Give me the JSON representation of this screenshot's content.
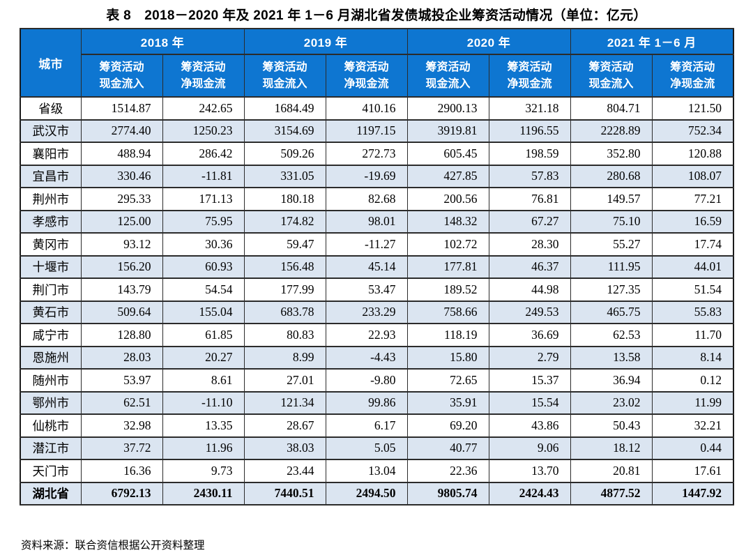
{
  "title": "表 8　2018－2020 年及 2021 年 1－6 月湖北省发债城投企业筹资活动情况（单位：亿元）",
  "source": "资料来源：联合资信根据公开资料整理",
  "colors": {
    "header_bg": "#0e76d1",
    "header_text": "#ffffff",
    "stripe_bg": "#dbe5f1",
    "border": "#2b2b2b"
  },
  "table": {
    "city_header": "城市",
    "year_groups": [
      "2018 年",
      "2019 年",
      "2020 年",
      "2021 年 1－6 月"
    ],
    "subheaders": [
      [
        "筹资活动",
        "现金流入"
      ],
      [
        "筹资活动",
        "净现金流"
      ]
    ],
    "rows": [
      {
        "city": "省级",
        "values": [
          "1514.87",
          "242.65",
          "1684.49",
          "410.16",
          "2900.13",
          "321.18",
          "804.71",
          "121.50"
        ]
      },
      {
        "city": "武汉市",
        "values": [
          "2774.40",
          "1250.23",
          "3154.69",
          "1197.15",
          "3919.81",
          "1196.55",
          "2228.89",
          "752.34"
        ]
      },
      {
        "city": "襄阳市",
        "values": [
          "488.94",
          "286.42",
          "509.26",
          "272.73",
          "605.45",
          "198.59",
          "352.80",
          "120.88"
        ]
      },
      {
        "city": "宜昌市",
        "values": [
          "330.46",
          "-11.81",
          "331.05",
          "-19.69",
          "427.85",
          "57.83",
          "280.68",
          "108.07"
        ]
      },
      {
        "city": "荆州市",
        "values": [
          "295.33",
          "171.13",
          "180.18",
          "82.68",
          "200.56",
          "76.81",
          "149.57",
          "77.21"
        ]
      },
      {
        "city": "孝感市",
        "values": [
          "125.00",
          "75.95",
          "174.82",
          "98.01",
          "148.32",
          "67.27",
          "75.10",
          "16.59"
        ]
      },
      {
        "city": "黄冈市",
        "values": [
          "93.12",
          "30.36",
          "59.47",
          "-11.27",
          "102.72",
          "28.30",
          "55.27",
          "17.74"
        ]
      },
      {
        "city": "十堰市",
        "values": [
          "156.20",
          "60.93",
          "156.48",
          "45.14",
          "177.81",
          "46.37",
          "111.95",
          "44.01"
        ]
      },
      {
        "city": "荆门市",
        "values": [
          "143.79",
          "54.54",
          "177.99",
          "53.47",
          "189.52",
          "44.98",
          "127.35",
          "51.54"
        ]
      },
      {
        "city": "黄石市",
        "values": [
          "509.64",
          "155.04",
          "683.78",
          "233.29",
          "758.66",
          "249.53",
          "465.75",
          "55.83"
        ]
      },
      {
        "city": "咸宁市",
        "values": [
          "128.80",
          "61.85",
          "80.83",
          "22.93",
          "118.19",
          "36.69",
          "62.53",
          "11.70"
        ]
      },
      {
        "city": "恩施州",
        "values": [
          "28.03",
          "20.27",
          "8.99",
          "-4.43",
          "15.80",
          "2.79",
          "13.58",
          "8.14"
        ]
      },
      {
        "city": "随州市",
        "values": [
          "53.97",
          "8.61",
          "27.01",
          "-9.80",
          "72.65",
          "15.37",
          "36.94",
          "0.12"
        ]
      },
      {
        "city": "鄂州市",
        "values": [
          "62.51",
          "-11.10",
          "121.34",
          "99.86",
          "35.91",
          "15.54",
          "23.02",
          "11.99"
        ]
      },
      {
        "city": "仙桃市",
        "values": [
          "32.98",
          "13.35",
          "28.67",
          "6.17",
          "69.20",
          "43.86",
          "50.43",
          "32.21"
        ]
      },
      {
        "city": "潜江市",
        "values": [
          "37.72",
          "11.96",
          "38.03",
          "5.05",
          "40.77",
          "9.06",
          "18.12",
          "0.44"
        ]
      },
      {
        "city": "天门市",
        "values": [
          "16.36",
          "9.73",
          "23.44",
          "13.04",
          "22.36",
          "13.70",
          "20.81",
          "17.61"
        ]
      }
    ],
    "total_row": {
      "city": "湖北省",
      "values": [
        "6792.13",
        "2430.11",
        "7440.51",
        "2494.50",
        "9805.74",
        "2424.43",
        "4877.52",
        "1447.92"
      ]
    }
  }
}
